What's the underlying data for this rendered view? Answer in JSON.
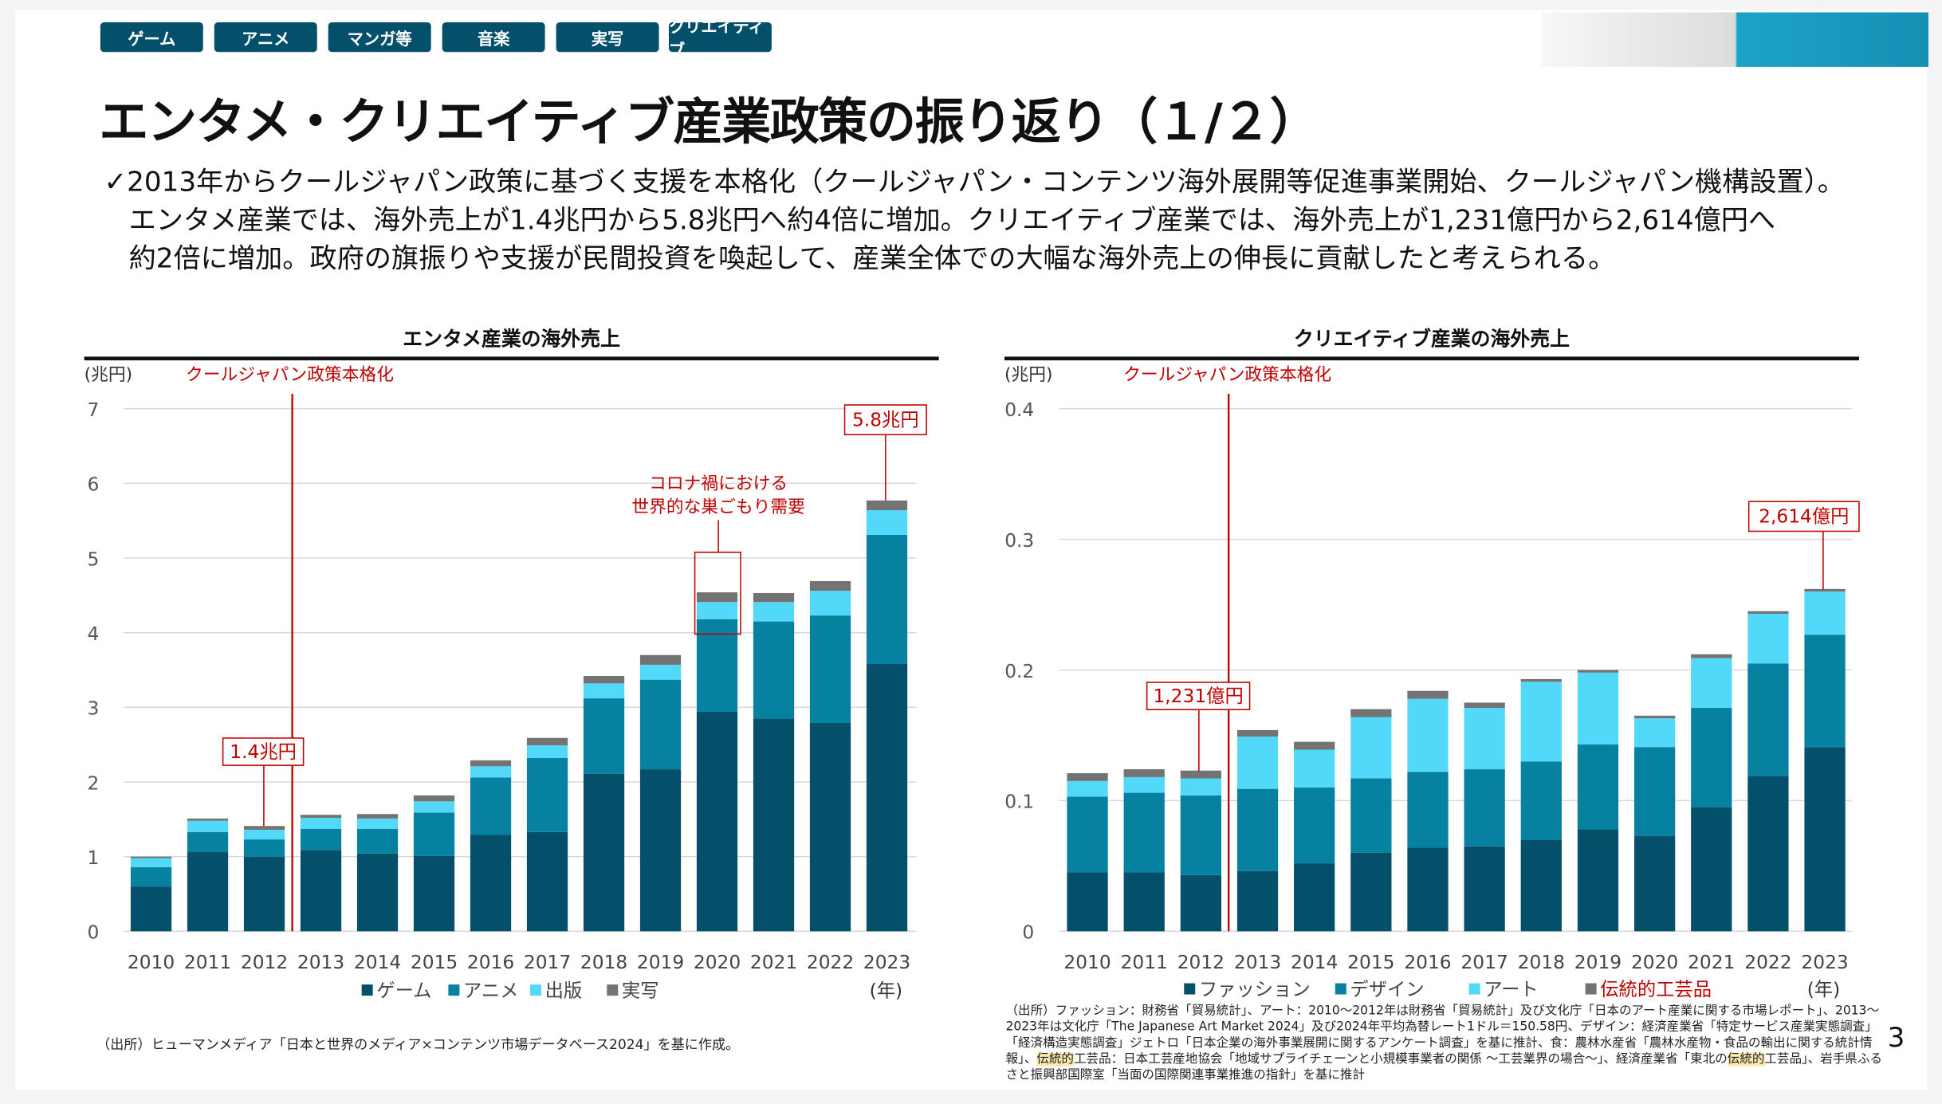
{
  "tabs": [
    "ゲーム",
    "アニメ",
    "マンガ等",
    "音楽",
    "実写",
    "クリエイティブ"
  ],
  "title": "エンタメ・クリエイティブ産業政策の振り返り（１/２）",
  "lead": {
    "check_icon": "checkmark-icon",
    "line1": "2013年からクールジャパン政策に基づく支援を本格化（クールジャパン・コンテンツ海外展開等促進事業開始、クールジャパン機構設置）。",
    "line2": "エンタメ産業では、海外売上が1.4兆円から5.8兆円へ約4倍に増加。クリエイティブ産業では、海外売上が1,231億円から2,614億円へ",
    "line3": "約2倍に増加。政府の旗振りや支援が民間投資を喚起して、産業全体での大幅な海外売上の伸長に貢献したと考えられる。"
  },
  "colors": {
    "dark": "#04506b",
    "mid": "#0681a0",
    "light": "#52d8f8",
    "gray": "#737373",
    "red": "#c00000"
  },
  "chart_data": [
    {
      "type": "bar",
      "stacked": true,
      "title": "エンタメ産業の海外売上",
      "ylabel": "(兆円)",
      "xlabel": "(年)",
      "ylim": [
        0,
        7
      ],
      "yticks": [
        "0",
        "1",
        "2",
        "3",
        "4",
        "5",
        "6",
        "7"
      ],
      "grid": true,
      "legend": "bottom",
      "categories": [
        "2010",
        "2011",
        "2012",
        "2013",
        "2014",
        "2015",
        "2016",
        "2017",
        "2018",
        "2019",
        "2020",
        "2021",
        "2022",
        "2023"
      ],
      "series": [
        {
          "name": "ゲーム",
          "values": [
            0.6,
            1.06,
            1.0,
            1.09,
            1.04,
            1.01,
            1.29,
            1.33,
            2.11,
            2.17,
            2.94,
            2.85,
            2.79,
            3.58
          ]
        },
        {
          "name": "アニメ",
          "values": [
            0.26,
            0.27,
            0.23,
            0.28,
            0.33,
            0.58,
            0.77,
            0.99,
            1.01,
            1.2,
            1.24,
            1.3,
            1.44,
            1.73
          ]
        },
        {
          "name": "出版",
          "values": [
            0.12,
            0.15,
            0.13,
            0.15,
            0.14,
            0.15,
            0.15,
            0.17,
            0.2,
            0.2,
            0.23,
            0.26,
            0.33,
            0.33
          ]
        },
        {
          "name": "実写",
          "values": [
            0.02,
            0.03,
            0.05,
            0.04,
            0.06,
            0.08,
            0.08,
            0.1,
            0.1,
            0.13,
            0.13,
            0.12,
            0.13,
            0.13
          ]
        }
      ],
      "annotations": {
        "policy": "クールジャパン政策本格化",
        "start_value": "1.4兆円",
        "end_value": "5.8兆円",
        "covid_line1": "コロナ禍における",
        "covid_line2": "世界的な巣ごもり需要"
      },
      "source": "（出所）ヒューマンメディア「日本と世界のメディア×コンテンツ市場データベース2024」を基に作成。"
    },
    {
      "type": "bar",
      "stacked": true,
      "title": "クリエイティブ産業の海外売上",
      "ylabel": "(兆円)",
      "xlabel": "(年)",
      "ylim": [
        0,
        0.4
      ],
      "yticks": [
        "0",
        "0.1",
        "0.2",
        "0.3",
        "0.4"
      ],
      "grid": true,
      "legend": "bottom",
      "categories": [
        "2010",
        "2011",
        "2012",
        "2013",
        "2014",
        "2015",
        "2016",
        "2017",
        "2018",
        "2019",
        "2020",
        "2021",
        "2022",
        "2023"
      ],
      "series": [
        {
          "name": "ファッション",
          "values": [
            0.045,
            0.045,
            0.043,
            0.046,
            0.052,
            0.06,
            0.064,
            0.065,
            0.07,
            0.078,
            0.073,
            0.095,
            0.119,
            0.141
          ]
        },
        {
          "name": "デザイン",
          "values": [
            0.058,
            0.061,
            0.061,
            0.063,
            0.058,
            0.057,
            0.058,
            0.059,
            0.06,
            0.065,
            0.068,
            0.076,
            0.086,
            0.086
          ]
        },
        {
          "name": "アート",
          "values": [
            0.012,
            0.012,
            0.013,
            0.04,
            0.029,
            0.047,
            0.056,
            0.047,
            0.061,
            0.055,
            0.022,
            0.038,
            0.038,
            0.033
          ]
        },
        {
          "name": "伝統的工芸品",
          "values": [
            0.006,
            0.006,
            0.006,
            0.005,
            0.006,
            0.006,
            0.006,
            0.004,
            0.002,
            0.002,
            0.002,
            0.003,
            0.002,
            0.002
          ]
        }
      ],
      "annotations": {
        "policy": "クールジャパン政策本格化",
        "start_value": "1,231億円",
        "end_value": "2,614億円"
      },
      "source": {
        "p1": "（出所）ファッション：財務省「貿易統計」、アート：2010～2012年は財務省「貿易統計」及び文化庁「日本のアート産業に関する市場レポート」、2013～2023年は文化庁「The Japanese Art Market 2024」及び2024年平均為替レート1ドル＝150.58円、デザイン：経済産業省「特定サービス産業実態調査」「経済構造実態調査」ジェトロ「日本企業の海外事業展開に関するアンケート調査」を基に推計、食：農林水産省「農林水産物・食品の輸出に関する統計情報」、",
        "hl1": "伝統的",
        "p2": "工芸品：日本工芸産地協会「地域サプライチェーンと小規模事業者の関係 ～工芸業界の場合～」、経済産業省「東北の",
        "hl2": "伝統的",
        "p3": "工芸品」、岩手県ふるさと振興部国際室「当面の国際関連事業推進の指針」を基に推計"
      }
    }
  ],
  "page_number": "3"
}
